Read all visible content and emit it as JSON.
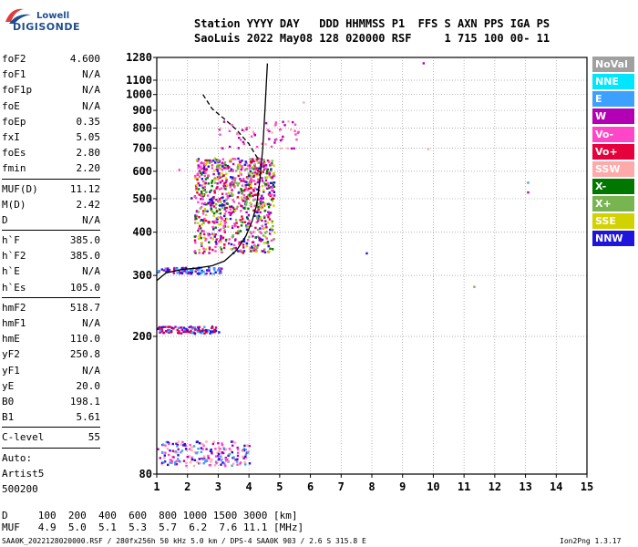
{
  "logo": {
    "top": "Lowell",
    "bottom": "DIGISONDE"
  },
  "header": {
    "line1": "Station YYYY DAY   DDD HHMMSS P1  FFS S AXN PPS IGA PS",
    "line2": "SaoLuis 2022 May08 128 020000 RSF     1 715 100 00- 11"
  },
  "params": [
    {
      "type": "row",
      "label": "foF2",
      "value": "4.600"
    },
    {
      "type": "row",
      "label": "foF1",
      "value": "N/A"
    },
    {
      "type": "row",
      "label": "foF1p",
      "value": "N/A"
    },
    {
      "type": "row",
      "label": "foE",
      "value": "N/A"
    },
    {
      "type": "row",
      "label": "foEp",
      "value": "0.35"
    },
    {
      "type": "row",
      "label": "fxI",
      "value": "5.05"
    },
    {
      "type": "row",
      "label": "foEs",
      "value": "2.80"
    },
    {
      "type": "row",
      "label": "fmin",
      "value": "2.20"
    },
    {
      "type": "sep"
    },
    {
      "type": "row",
      "label": "MUF(D)",
      "value": "11.12"
    },
    {
      "type": "row",
      "label": "M(D)",
      "value": "2.42"
    },
    {
      "type": "row",
      "label": "D",
      "value": "N/A"
    },
    {
      "type": "sep"
    },
    {
      "type": "row",
      "label": "h`F",
      "value": "385.0"
    },
    {
      "type": "row",
      "label": "h`F2",
      "value": "385.0"
    },
    {
      "type": "row",
      "label": "h`E",
      "value": "N/A"
    },
    {
      "type": "row",
      "label": "h`Es",
      "value": "105.0"
    },
    {
      "type": "sep"
    },
    {
      "type": "row",
      "label": "hmF2",
      "value": "518.7"
    },
    {
      "type": "row",
      "label": "hmF1",
      "value": "N/A"
    },
    {
      "type": "row",
      "label": "hmE",
      "value": "110.0"
    },
    {
      "type": "row",
      "label": "yF2",
      "value": "250.8"
    },
    {
      "type": "row",
      "label": "yF1",
      "value": "N/A"
    },
    {
      "type": "row",
      "label": "yE",
      "value": "20.0"
    },
    {
      "type": "row",
      "label": "B0",
      "value": "198.1"
    },
    {
      "type": "row",
      "label": "B1",
      "value": "5.61"
    },
    {
      "type": "sep"
    },
    {
      "type": "row",
      "label": "C-level",
      "value": "55"
    },
    {
      "type": "sep"
    },
    {
      "type": "text",
      "value": "Auto:"
    },
    {
      "type": "text",
      "value": "Artist5"
    },
    {
      "type": "text",
      "value": "500200"
    }
  ],
  "legend": [
    {
      "label": "NoVal",
      "color": "#a0a0a0"
    },
    {
      "label": "NNE",
      "color": "#00e6ff"
    },
    {
      "label": "E",
      "color": "#3ca0ff"
    },
    {
      "label": "W",
      "color": "#b400b4"
    },
    {
      "label": "Vo-",
      "color": "#ff46c8"
    },
    {
      "label": "Vo+",
      "color": "#e6003c"
    },
    {
      "label": "SSW",
      "color": "#ffaaaa"
    },
    {
      "label": "X-",
      "color": "#007800"
    },
    {
      "label": "X+",
      "color": "#78b450"
    },
    {
      "label": "SSE",
      "color": "#d2d200"
    },
    {
      "label": "NNW",
      "color": "#1e14dc"
    }
  ],
  "footer": {
    "d_row": "D     100  200  400  600  800 1000 1500 3000 [km]",
    "muf_row": "MUF   4.9  5.0  5.1  5.3  5.7  6.2  7.6 11.1 [MHz]",
    "file_info": "SAA0K_2022128020000.RSF / 280fx256h 50 kHz 5.0 km / DPS-4 SAA0K 903 / 2.6 S 315.8 E",
    "version": "Ion2Png 1.3.17"
  },
  "chart_data": {
    "type": "scatter",
    "x_ticks": [
      1,
      2,
      3,
      4,
      5,
      6,
      7,
      8,
      9,
      10,
      11,
      12,
      13,
      14,
      15
    ],
    "x_tick_labels": [
      "1",
      "2",
      "3",
      "4",
      "5",
      "6",
      "7",
      "8",
      "9",
      "10",
      "11",
      "12",
      "13",
      "14",
      "15"
    ],
    "y_ticks": [
      80,
      200,
      300,
      400,
      500,
      600,
      700,
      800,
      900,
      1000,
      1100,
      1280
    ],
    "y_tick_labels": [
      "80",
      "200",
      "300",
      "400",
      "500",
      "600",
      "700",
      "800",
      "900",
      "1000",
      "1100",
      "1280"
    ],
    "xlim": [
      1,
      15
    ],
    "ylim": [
      80,
      1280
    ],
    "y_scale": "log",
    "grid": true,
    "curves": [
      {
        "style": "solid",
        "x": [
          1.0,
          1.3,
          1.8,
          2.3,
          2.8,
          3.2,
          3.6,
          3.9,
          4.1,
          4.25,
          4.35,
          4.45,
          4.52,
          4.57,
          4.6
        ],
        "y": [
          290,
          305,
          312,
          315,
          320,
          330,
          355,
          390,
          430,
          480,
          560,
          700,
          900,
          1100,
          1230
        ]
      },
      {
        "style": "dashed",
        "x": [
          2.5,
          2.8,
          3.2,
          3.6,
          4.0,
          4.3
        ],
        "y": [
          1000,
          910,
          850,
          790,
          720,
          650
        ]
      }
    ],
    "echo_regions": [
      {
        "x": [
          2.2,
          4.8
        ],
        "y": [
          350,
          660
        ],
        "density": 900,
        "colors": [
          "#b400b4",
          "#ff46c8",
          "#ff46c8",
          "#007800",
          "#78b450",
          "#1e14dc",
          "#d2d200",
          "#e6003c"
        ]
      },
      {
        "x": [
          1.0,
          3.1
        ],
        "y": [
          305,
          318
        ],
        "density": 90,
        "colors": [
          "#1e14dc",
          "#3ca0ff",
          "#b400b4"
        ]
      },
      {
        "x": [
          1.0,
          3.0
        ],
        "y": [
          205,
          215
        ],
        "density": 110,
        "colors": [
          "#1e14dc",
          "#3ca0ff",
          "#b400b4",
          "#e6003c"
        ]
      },
      {
        "x": [
          1.0,
          4.0
        ],
        "y": [
          85,
          100
        ],
        "density": 200,
        "colors": [
          "#1e14dc",
          "#ff46c8",
          "#3ca0ff",
          "#b400b4",
          "#ffaaaa"
        ]
      },
      {
        "x": [
          3.0,
          5.6
        ],
        "y": [
          700,
          850
        ],
        "density": 60,
        "colors": [
          "#b400b4",
          "#ffaaaa",
          "#ff46c8"
        ]
      },
      {
        "x": [
          2.6,
          3.2
        ],
        "y": [
          480,
          520
        ],
        "density": 15,
        "colors": [
          "#1e14dc",
          "#b400b4"
        ]
      }
    ],
    "isolated_echoes": [
      {
        "x": 9.65,
        "y": 1240,
        "color": "#b400b4"
      },
      {
        "x": 9.8,
        "y": 700,
        "color": "#ffaaaa"
      },
      {
        "x": 7.8,
        "y": 350,
        "color": "#1e14dc"
      },
      {
        "x": 11.3,
        "y": 280,
        "color": "#78b450"
      },
      {
        "x": 13.05,
        "y": 560,
        "color": "#3ca0ff"
      },
      {
        "x": 13.05,
        "y": 525,
        "color": "#b400b4"
      },
      {
        "x": 5.75,
        "y": 955,
        "color": "#ffaaaa"
      },
      {
        "x": 1.7,
        "y": 610,
        "color": "#ff46c8"
      },
      {
        "x": 2.1,
        "y": 505,
        "color": "#1e14dc"
      }
    ]
  }
}
